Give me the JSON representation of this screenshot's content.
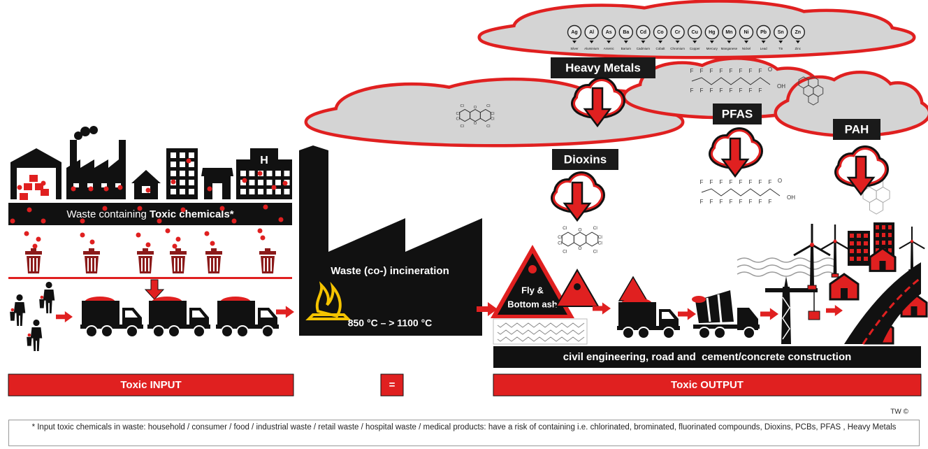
{
  "heavy_metals": {
    "title": "Heavy Metals",
    "elements": [
      {
        "symbol": "Ag",
        "name": "Silver"
      },
      {
        "symbol": "Al",
        "name": "Aluminium"
      },
      {
        "symbol": "As",
        "name": "Arsenic"
      },
      {
        "symbol": "Ba",
        "name": "Barium"
      },
      {
        "symbol": "Cd",
        "name": "Cadmium"
      },
      {
        "symbol": "Co",
        "name": "Cobalt"
      },
      {
        "symbol": "Cr",
        "name": "Chromium"
      },
      {
        "symbol": "Cu",
        "name": "Copper"
      },
      {
        "symbol": "Hg",
        "name": "Mercury"
      },
      {
        "symbol": "Mn",
        "name": "Manganese"
      },
      {
        "symbol": "Ni",
        "name": "Nickel"
      },
      {
        "symbol": "Pb",
        "name": "Lead"
      },
      {
        "symbol": "Sn",
        "name": "Tin"
      },
      {
        "symbol": "Zn",
        "name": "Zinc"
      }
    ]
  },
  "clouds": {
    "dioxins": "Dioxins",
    "pfas": "PFAS",
    "pah": "PAH"
  },
  "molecule_atoms": {
    "chlorine": "Cl",
    "oxygen": "O",
    "fluorine": "F",
    "hydroxyl": "OH"
  },
  "input": {
    "waste_label": "Waste containing ",
    "waste_label_bold": "Toxic chemicals*",
    "hospital": "H",
    "footer": "Toxic INPUT"
  },
  "incineration": {
    "title": "Waste (co-) incineration",
    "temperature": "850 °C – > 1100 °C"
  },
  "equals": "=",
  "output": {
    "ash_line1": "Fly &",
    "ash_line2": "Bottom ash",
    "construction": "civil engineering, road and  cement/concrete construction",
    "footer": "Toxic OUTPUT"
  },
  "credit": "TW ©",
  "footnote": "* Input toxic  chemicals  in  waste:   household / consumer / food / industrial waste / retail waste / hospital waste / medical products: have a risk of containing  i.e. chlorinated, brominated, fluorinated compounds, Dioxins, PCBs, PFAS , Heavy Metals"
}
